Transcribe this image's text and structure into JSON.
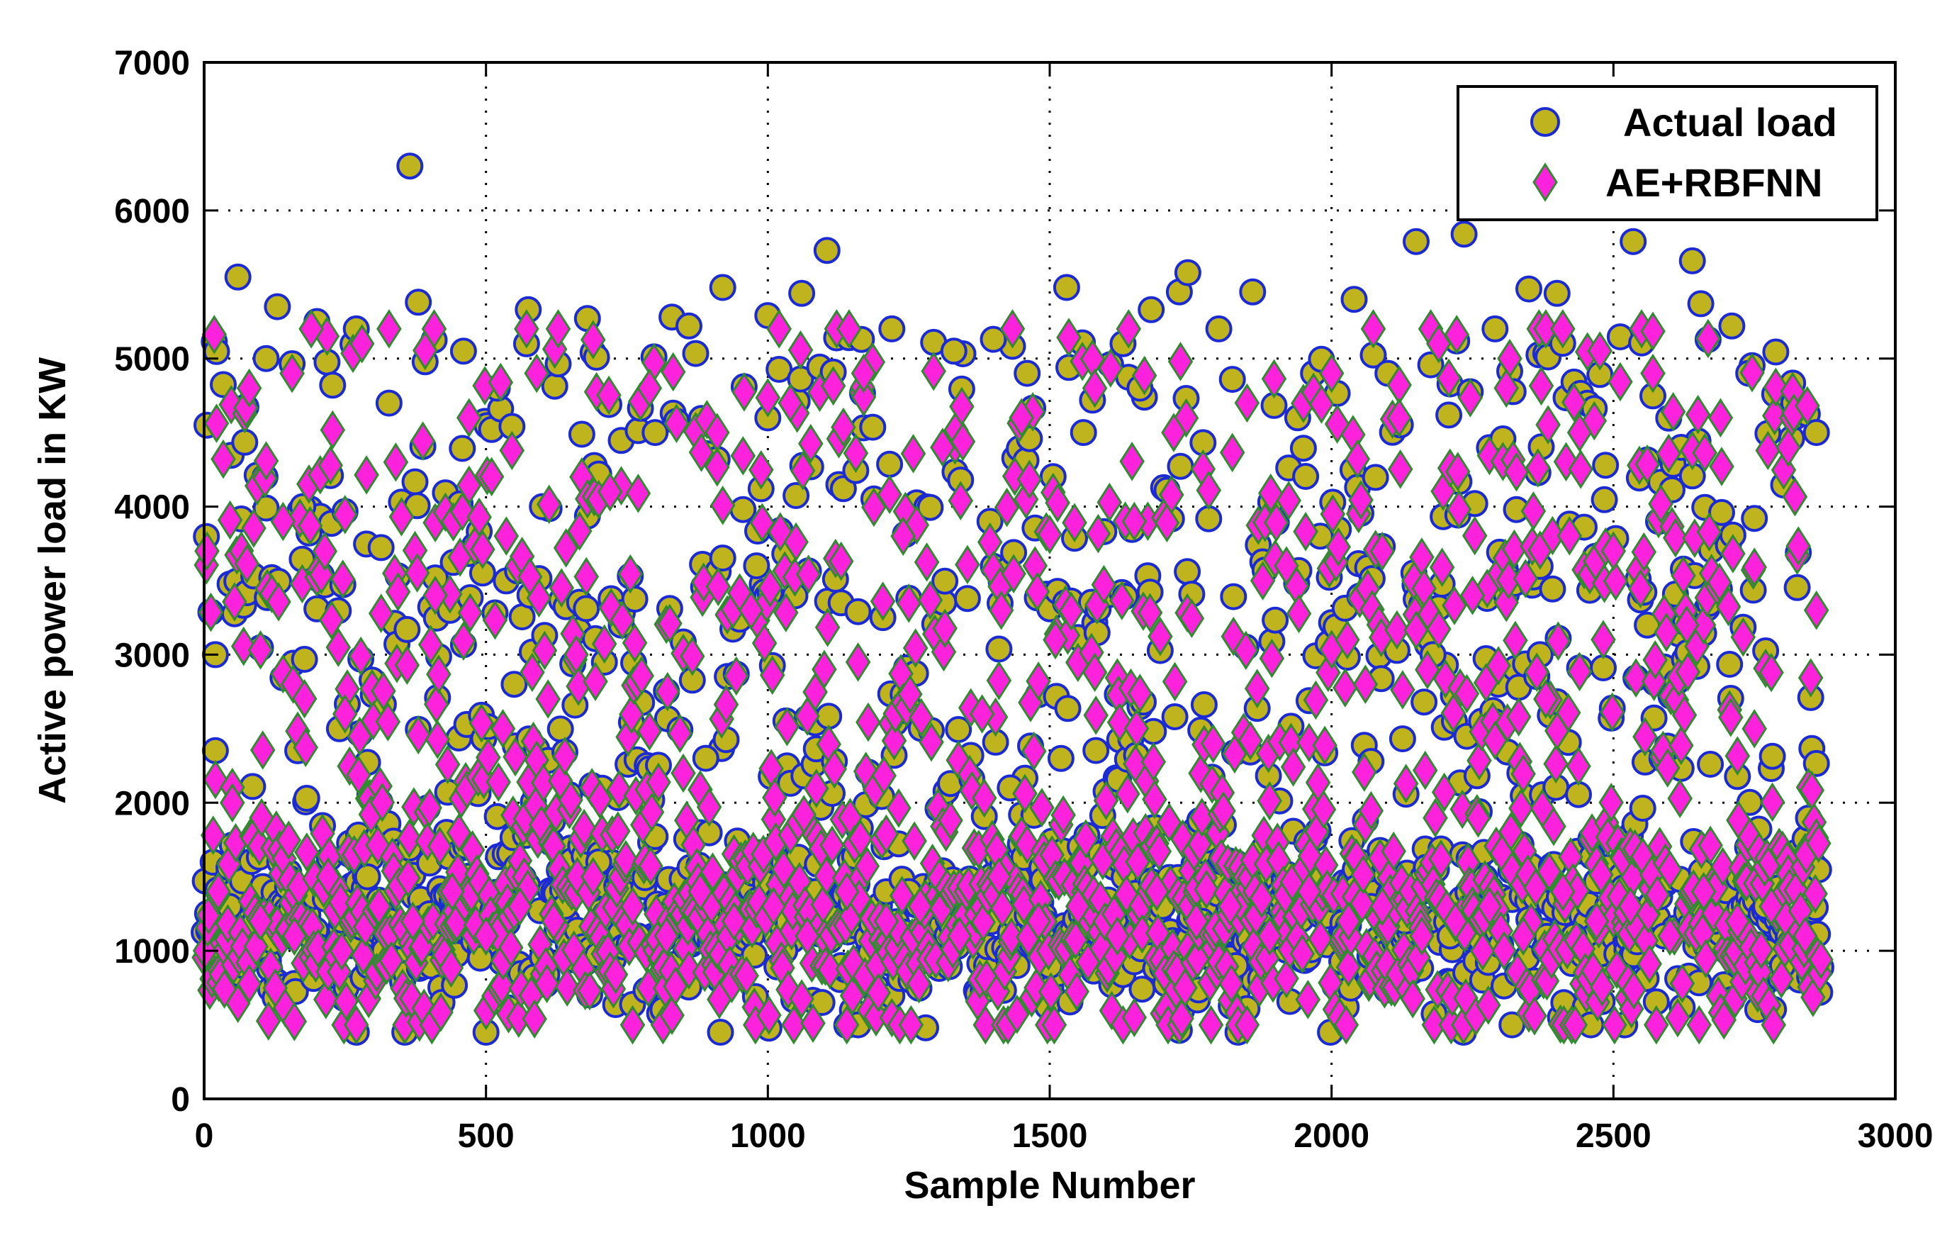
{
  "colors": {
    "actual_fill": "#c0b41e",
    "actual_edge": "#1a2bd6",
    "pred_fill": "#ff22dd",
    "pred_edge": "#2e8b2e",
    "grid": "#000000",
    "background": "#ffffff"
  },
  "chart_data": {
    "type": "scatter",
    "title": "",
    "xlabel": "Sample Number",
    "ylabel": "Active power load in KW",
    "xlim": [
      0,
      3000
    ],
    "ylim": [
      0,
      7000
    ],
    "xticks": [
      0,
      500,
      1000,
      1500,
      2000,
      2500,
      3000
    ],
    "yticks": [
      0,
      1000,
      2000,
      3000,
      4000,
      5000,
      6000,
      7000
    ],
    "xtick_labels": [
      "0",
      "500",
      "1000",
      "1500",
      "2000",
      "2500",
      "3000"
    ],
    "ytick_labels": [
      "0",
      "1000",
      "2000",
      "3000",
      "4000",
      "5000",
      "6000",
      "7000"
    ],
    "grid": true,
    "legend_position": "top-right",
    "n_samples": 2870,
    "series": [
      {
        "name": "Actual load",
        "marker": "circle",
        "x": [
          5,
          20,
          45,
          60,
          70,
          90,
          110,
          130,
          150,
          175,
          200,
          215,
          240,
          270,
          290,
          320,
          350,
          365,
          380,
          400,
          430,
          460,
          490,
          520,
          550,
          575,
          600,
          640,
          680,
          700,
          740,
          770,
          800,
          830,
          860,
          890,
          920,
          950,
          980,
          1000,
          1030,
          1060,
          1085,
          1105,
          1130,
          1160,
          1200,
          1220,
          1250,
          1280,
          1300,
          1330,
          1360,
          1400,
          1430,
          1460,
          1500,
          1530,
          1560,
          1600,
          1630,
          1660,
          1680,
          1700,
          1730,
          1745,
          1770,
          1800,
          1830,
          1860,
          1900,
          1940,
          1980,
          2020,
          2040,
          2070,
          2100,
          2130,
          2150,
          2180,
          2210,
          2235,
          2260,
          2290,
          2320,
          2350,
          2370,
          2400,
          2430,
          2460,
          2490,
          2520,
          2535,
          2560,
          2590,
          2620,
          2640,
          2655,
          2680,
          2710,
          2740,
          2770,
          2800,
          2830,
          2860
        ],
        "y": [
          4550,
          3000,
          1300,
          5550,
          900,
          1200,
          5000,
          5350,
          1100,
          4000,
          5250,
          1350,
          2500,
          5200,
          1500,
          1000,
          1100,
          6300,
          5380,
          1250,
          1800,
          5050,
          950,
          4800,
          2800,
          5330,
          4000,
          1300,
          5270,
          1600,
          3200,
          1100,
          4500,
          5280,
          5220,
          2300,
          5480,
          1200,
          3600,
          5290,
          1000,
          5440,
          1400,
          5730,
          900,
          500,
          1200,
          5200,
          1400,
          480,
          1300,
          5050,
          1300,
          5130,
          2100,
          4900,
          900,
          5480,
          4500,
          1100,
          5100,
          4800,
          5330,
          1300,
          5450,
          5580,
          1200,
          5200,
          900,
          5450,
          1100,
          4600,
          3800,
          1100,
          5400,
          1300,
          4900,
          1200,
          5790,
          3000,
          1100,
          5840,
          1200,
          5200,
          500,
          5470,
          3000,
          5440,
          1100,
          500,
          1300,
          500,
          5790,
          3200,
          1100,
          4400,
          5660,
          5370,
          1200,
          5220,
          4900,
          1300,
          900,
          1100,
          4500
        ]
      },
      {
        "name": "AE+RBFNN",
        "marker": "diamond",
        "x": [
          5,
          25,
          50,
          80,
          100,
          140,
          160,
          190,
          220,
          250,
          280,
          310,
          340,
          370,
          410,
          440,
          470,
          500,
          530,
          560,
          590,
          620,
          660,
          690,
          720,
          760,
          790,
          820,
          850,
          880,
          910,
          940,
          970,
          1010,
          1040,
          1070,
          1100,
          1140,
          1170,
          1210,
          1240,
          1270,
          1310,
          1340,
          1380,
          1410,
          1450,
          1480,
          1510,
          1550,
          1580,
          1620,
          1650,
          1690,
          1720,
          1760,
          1790,
          1820,
          1850,
          1890,
          1920,
          1960,
          2000,
          2030,
          2060,
          2090,
          2120,
          2160,
          2190,
          2220,
          2250,
          2280,
          2310,
          2340,
          2380,
          2410,
          2440,
          2470,
          2500,
          2530,
          2570,
          2600,
          2630,
          2660,
          2690,
          2720,
          2750,
          2780,
          2810,
          2840,
          2860
        ],
        "y": [
          3700,
          1400,
          2000,
          4800,
          1200,
          3900,
          1100,
          5200,
          1500,
          2600,
          5100,
          1300,
          4300,
          1200,
          3400,
          1400,
          4600,
          1100,
          2500,
          1300,
          4900,
          1200,
          3000,
          1500,
          4100,
          1300,
          4800,
          1100,
          2200,
          1400,
          4500,
          1200,
          3300,
          1300,
          4700,
          1100,
          2900,
          1400,
          4900,
          1200,
          3800,
          1300,
          4400,
          1100,
          2600,
          1500,
          4600,
          1200,
          3100,
          1300,
          4800,
          1100,
          3900,
          1400,
          4500,
          1200,
          2400,
          1300,
          4700,
          1100,
          3600,
          1400,
          4900,
          1200,
          2800,
          1300,
          4600,
          1100,
          5100,
          1200,
          3400,
          1300,
          4800,
          1100,
          2700,
          1400,
          4500,
          1200,
          3700,
          1300,
          4900,
          1100,
          3200,
          1400,
          4600,
          1200,
          2500,
          1300,
          4400,
          1100,
          3300
        ]
      }
    ]
  }
}
